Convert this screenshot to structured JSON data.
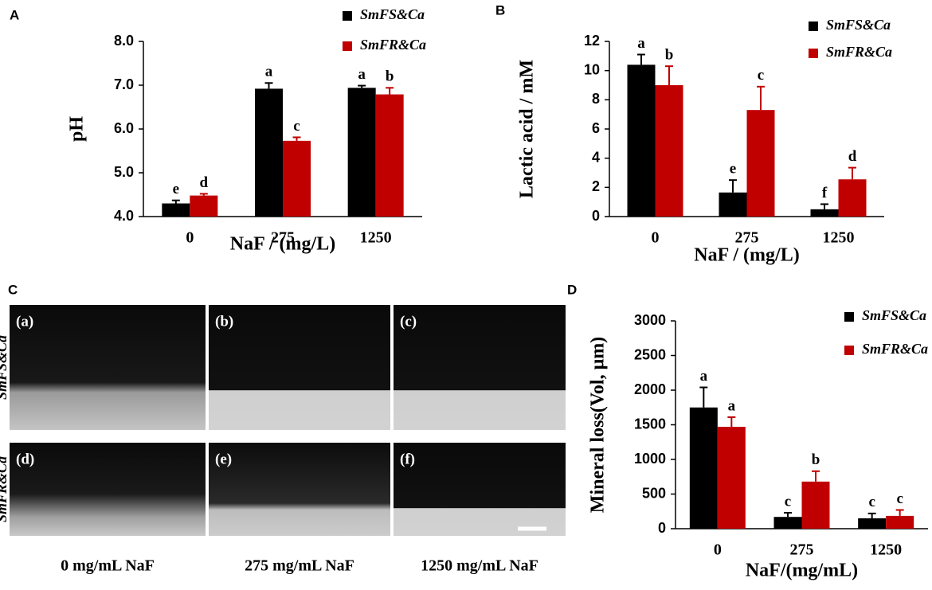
{
  "chart_data": [
    {
      "type": "bar",
      "panel": "A",
      "ylabel": "pH",
      "xlabel": "NaF / (mg/L)",
      "categories": [
        "0",
        "275",
        "1250"
      ],
      "series": [
        {
          "name": "SmFS&Ca",
          "color": "#000000",
          "values": [
            4.3,
            6.92,
            6.94
          ],
          "errors": [
            0.07,
            0.13,
            0.05
          ],
          "letters": [
            "e",
            "a",
            "a"
          ]
        },
        {
          "name": "SmFR&Ca",
          "color": "#c00000",
          "values": [
            4.48,
            5.73,
            6.79
          ],
          "errors": [
            0.04,
            0.08,
            0.15
          ],
          "letters": [
            "d",
            "c",
            "b"
          ]
        }
      ],
      "ylim": [
        4,
        8
      ],
      "yticks": [
        {
          "value": 4,
          "label": "4.0"
        },
        {
          "value": 5,
          "label": "5.0"
        },
        {
          "value": 6,
          "label": "6.0"
        },
        {
          "value": 7,
          "label": "7.0"
        },
        {
          "value": 8,
          "label": "8.0"
        }
      ],
      "legend": "upper right"
    },
    {
      "type": "bar",
      "panel": "B",
      "ylabel": "Lactic acid / mM",
      "xlabel": "NaF / (mg/L)",
      "categories": [
        "0",
        "275",
        "1250"
      ],
      "series": [
        {
          "name": "SmFS&Ca",
          "color": "#000000",
          "values": [
            10.4,
            1.65,
            0.5
          ],
          "errors": [
            0.7,
            0.85,
            0.35
          ],
          "letters": [
            "a",
            "e",
            "f"
          ]
        },
        {
          "name": "SmFR&Ca",
          "color": "#c00000",
          "values": [
            9.0,
            7.3,
            2.55
          ],
          "errors": [
            1.3,
            1.6,
            0.8
          ],
          "letters": [
            "b",
            "c",
            "d"
          ]
        }
      ],
      "ylim": [
        0,
        12
      ],
      "yticks": [
        0,
        2,
        4,
        6,
        8,
        10,
        12
      ],
      "legend": "upper right"
    },
    {
      "type": "bar",
      "panel": "D",
      "ylabel": "Mineral loss(Vol, μm)",
      "xlabel": "NaF/(mg/mL)",
      "categories": [
        "0",
        "275",
        "1250"
      ],
      "series": [
        {
          "name": "SmFS&Ca",
          "color": "#000000",
          "values": [
            1750,
            170,
            150
          ],
          "errors": [
            290,
            60,
            70
          ],
          "letters": [
            "a",
            "c",
            "c"
          ]
        },
        {
          "name": "SmFR&Ca",
          "color": "#c00000",
          "values": [
            1470,
            680,
            185
          ],
          "errors": [
            140,
            150,
            85
          ],
          "letters": [
            "a",
            "b",
            "c"
          ]
        }
      ],
      "ylim": [
        0,
        3000
      ],
      "yticks": [
        0,
        500,
        1000,
        1500,
        2000,
        2500,
        3000
      ],
      "legend": "upper right"
    }
  ],
  "image_panel": {
    "panel": "C",
    "rows": [
      "SmFS&Ca",
      "SmFR&Ca"
    ],
    "cells": [
      "(a)",
      "(b)",
      "(c)",
      "(d)",
      "(e)",
      "(f)"
    ],
    "columns": [
      "0 mg/mL NaF",
      "275 mg/mL NaF",
      "1250 mg/mL NaF"
    ]
  }
}
